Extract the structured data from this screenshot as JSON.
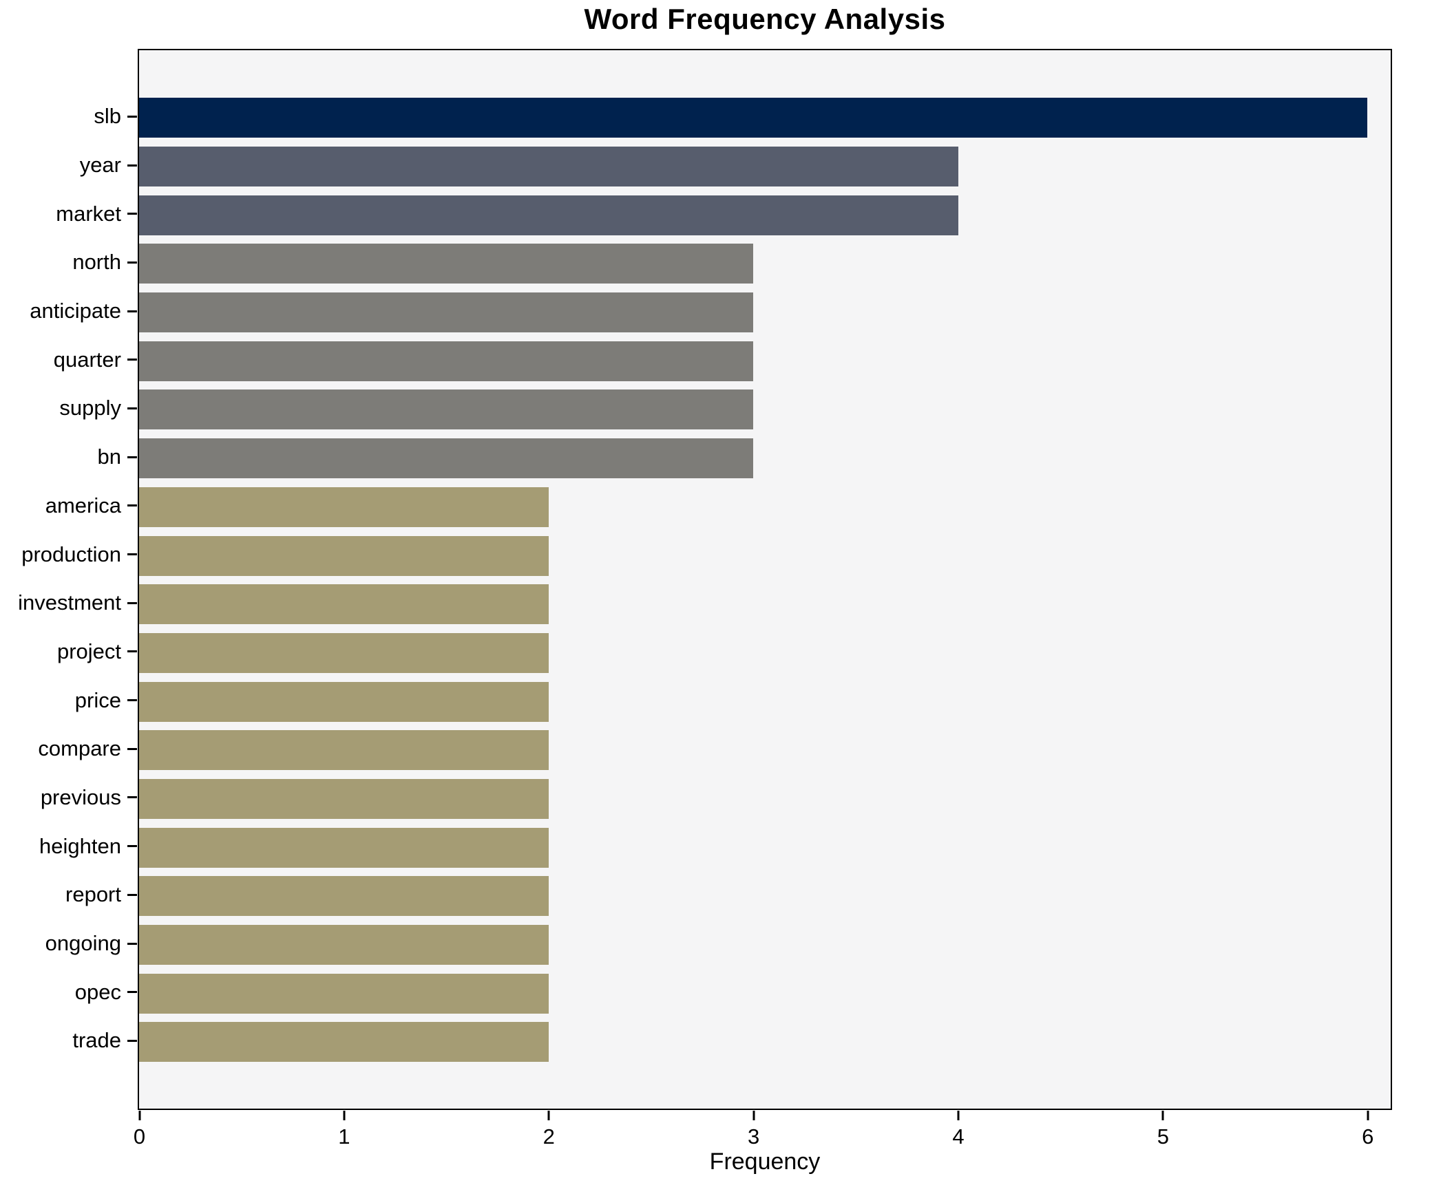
{
  "chart_data": {
    "type": "bar",
    "orientation": "horizontal",
    "title": "Word Frequency Analysis",
    "xlabel": "Frequency",
    "ylabel": "",
    "categories": [
      "slb",
      "year",
      "market",
      "north",
      "anticipate",
      "quarter",
      "supply",
      "bn",
      "america",
      "production",
      "investment",
      "project",
      "price",
      "compare",
      "previous",
      "heighten",
      "report",
      "ongoing",
      "opec",
      "trade"
    ],
    "values": [
      6,
      4,
      4,
      3,
      3,
      3,
      3,
      3,
      2,
      2,
      2,
      2,
      2,
      2,
      2,
      2,
      2,
      2,
      2,
      2
    ],
    "bar_colors": [
      "#00224e",
      "#575d6d",
      "#575d6d",
      "#7d7c78",
      "#7d7c78",
      "#7d7c78",
      "#7d7c78",
      "#7d7c78",
      "#a59c74",
      "#a59c74",
      "#a59c74",
      "#a59c74",
      "#a59c74",
      "#a59c74",
      "#a59c74",
      "#a59c74",
      "#a59c74",
      "#a59c74",
      "#a59c74",
      "#a59c74"
    ],
    "x_ticks": [
      0,
      1,
      2,
      3,
      4,
      5,
      6
    ],
    "xlim": [
      0,
      6.11
    ],
    "grid": false,
    "legend": false,
    "plot_bg": "#f5f5f6",
    "figure_bg": "#ffffff",
    "palette": {
      "value_6": "#00224e",
      "value_4": "#575d6d",
      "value_3": "#7d7c78",
      "value_2": "#a59c74"
    }
  }
}
